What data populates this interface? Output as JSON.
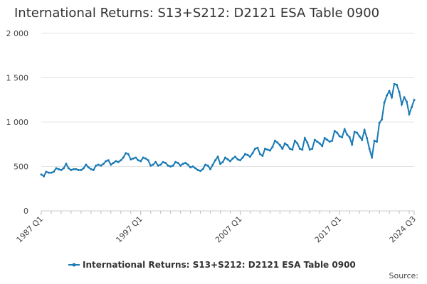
{
  "chart_data": {
    "type": "line",
    "title": "International Returns: S13+S212: D2121 ESA Table 0900",
    "source": "Source:",
    "categories": [
      "1987 Q1",
      null,
      null,
      null,
      null,
      null,
      null,
      null,
      null,
      null,
      null,
      null,
      null,
      null,
      null,
      null,
      null,
      null,
      null,
      null,
      null,
      null,
      null,
      null,
      null,
      null,
      null,
      null,
      null,
      null,
      null,
      null,
      null,
      null,
      null,
      null,
      null,
      null,
      null,
      null,
      "1997 Q1",
      null,
      null,
      null,
      null,
      null,
      null,
      null,
      null,
      null,
      null,
      null,
      null,
      null,
      null,
      null,
      null,
      null,
      null,
      null,
      null,
      null,
      null,
      null,
      null,
      null,
      null,
      null,
      null,
      null,
      null,
      null,
      null,
      null,
      null,
      null,
      null,
      null,
      null,
      null,
      "2007 Q1",
      null,
      null,
      null,
      null,
      null,
      null,
      null,
      null,
      null,
      null,
      null,
      null,
      null,
      null,
      null,
      null,
      null,
      null,
      null,
      null,
      null,
      null,
      null,
      null,
      null,
      null,
      null,
      null,
      null,
      null,
      null,
      null,
      null,
      null,
      null,
      null,
      null,
      null,
      null,
      "2017 Q1",
      null,
      null,
      null,
      null,
      null,
      null,
      null,
      null,
      null,
      null,
      null,
      null,
      null,
      null,
      null,
      null,
      null,
      null,
      null,
      null,
      null,
      null,
      null,
      null,
      null,
      null,
      null,
      null,
      null,
      "2024 Q3"
    ],
    "series": [
      {
        "name": "International Returns: S13+S212: D2121 ESA Table 0900",
        "color": "#1a7ab5",
        "values": [
          410,
          390,
          440,
          430,
          430,
          440,
          480,
          470,
          460,
          480,
          530,
          480,
          460,
          470,
          470,
          460,
          460,
          480,
          520,
          490,
          470,
          460,
          510,
          520,
          510,
          530,
          560,
          570,
          520,
          540,
          560,
          550,
          570,
          600,
          650,
          640,
          580,
          590,
          600,
          570,
          560,
          600,
          590,
          570,
          510,
          520,
          550,
          510,
          520,
          550,
          540,
          510,
          500,
          510,
          550,
          540,
          510,
          530,
          540,
          520,
          490,
          500,
          480,
          460,
          450,
          470,
          520,
          510,
          470,
          520,
          570,
          610,
          530,
          550,
          600,
          580,
          560,
          590,
          610,
          580,
          570,
          600,
          640,
          630,
          610,
          650,
          700,
          710,
          640,
          620,
          700,
          690,
          680,
          720,
          790,
          770,
          740,
          700,
          760,
          740,
          700,
          690,
          790,
          760,
          700,
          690,
          820,
          770,
          690,
          700,
          800,
          780,
          760,
          730,
          820,
          800,
          780,
          790,
          900,
          880,
          840,
          830,
          920,
          860,
          830,
          750,
          890,
          880,
          840,
          800,
          910,
          820,
          700,
          600,
          790,
          780,
          990,
          1030,
          1220,
          1300,
          1350,
          1280,
          1430,
          1420,
          1340,
          1200,
          1280,
          1230,
          1090,
          1170,
          1250
        ]
      }
    ],
    "ylim": [
      0,
      2000
    ],
    "yticks": [
      0,
      500,
      {
        "value": 1000,
        "label": "1 000"
      },
      {
        "value": 1500,
        "label": "1 500"
      },
      {
        "value": 2000,
        "label": "2 000"
      }
    ],
    "grid": true
  }
}
